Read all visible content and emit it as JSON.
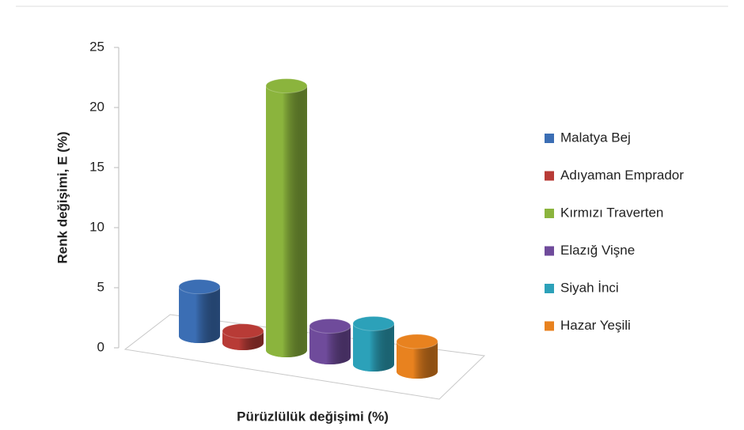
{
  "chart_data": {
    "type": "bar3d",
    "xlabel": "Pürüzlülük değişimi (%)",
    "ylabel": "Renk değişimi, E (%)",
    "ylim": [
      0,
      25
    ],
    "yticks": [
      0,
      5,
      10,
      15,
      20,
      25
    ],
    "legend": "right",
    "series": [
      {
        "name": "Malatya Bej",
        "color": "#3b6eb4",
        "values": [
          4.1
        ]
      },
      {
        "name": "Adıyaman Emprador",
        "color": "#b83b36",
        "values": [
          1
        ]
      },
      {
        "name": "Kırmızı Traverten",
        "color": "#8bb43d",
        "values": [
          22
        ]
      },
      {
        "name": "Elazığ Vişne",
        "color": "#6f4b9b",
        "values": [
          2.6
        ]
      },
      {
        "name": "Siyah İnci",
        "color": "#2ca1b9",
        "values": [
          3.4
        ]
      },
      {
        "name": "Hazar Yeşili",
        "color": "#e8821f",
        "values": [
          2.5
        ]
      }
    ]
  }
}
